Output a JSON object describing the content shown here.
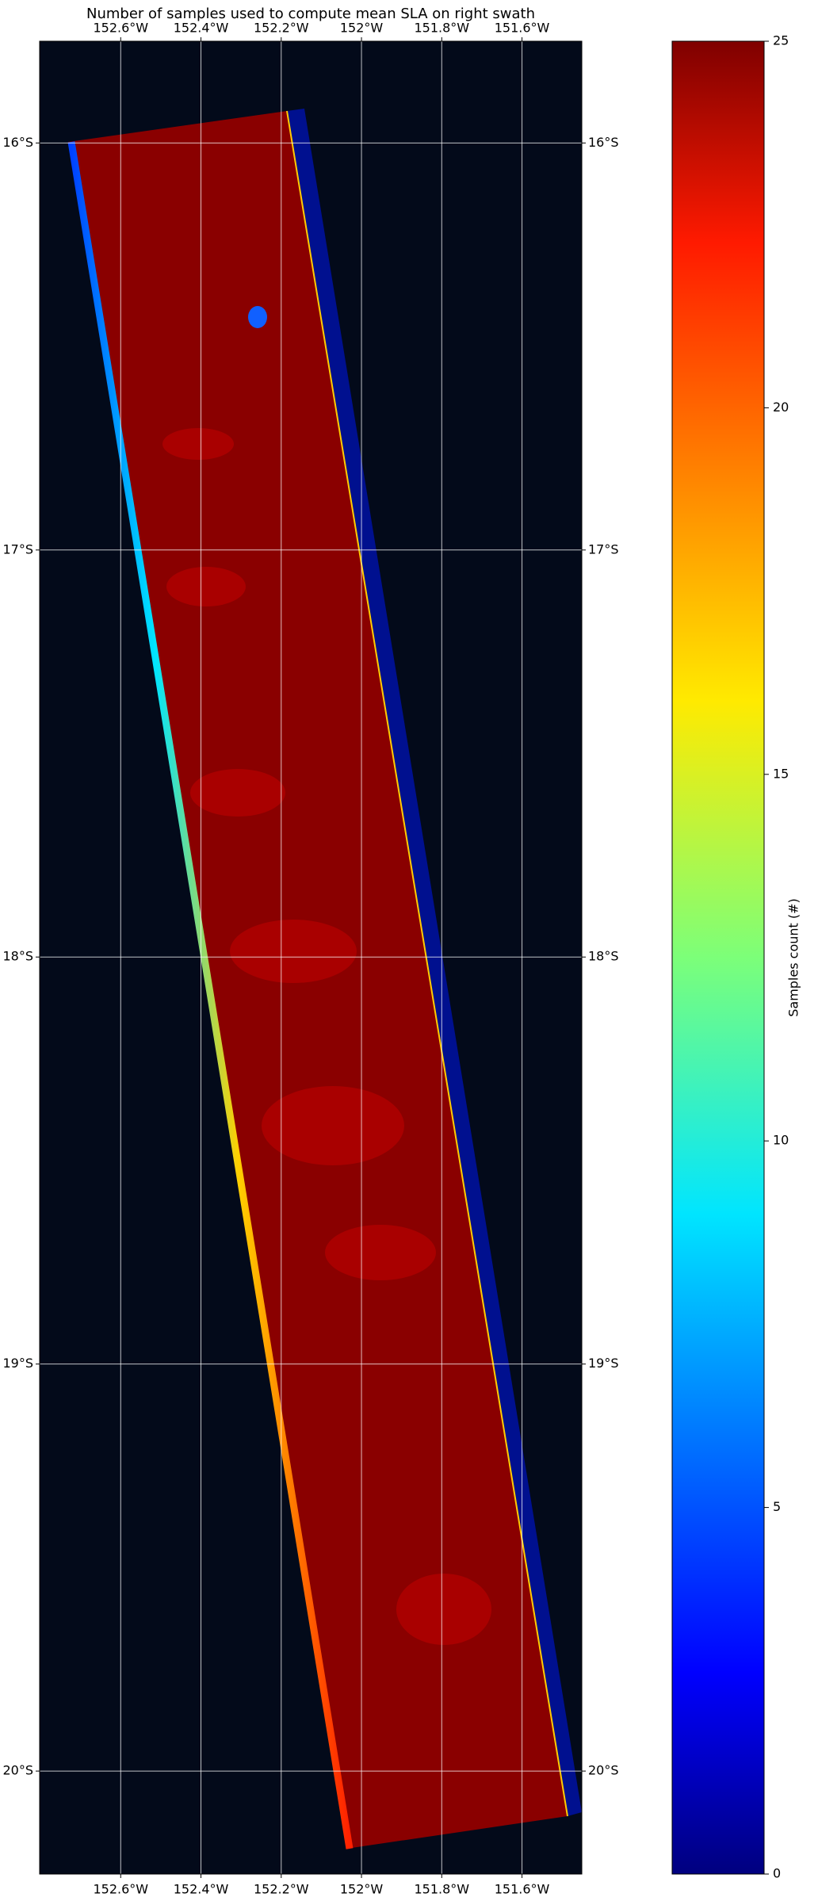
{
  "chart_data": {
    "type": "map",
    "title": "Number of samples used to compute mean SLA on right swath",
    "lon_lim": [
      -152.802,
      -151.451
    ],
    "lat_lim": [
      -20.253,
      -15.75
    ],
    "lon_ticks": [
      {
        "value": -152.6,
        "label": "152.6°W"
      },
      {
        "value": -152.4,
        "label": "152.4°W"
      },
      {
        "value": -152.2,
        "label": "152.2°W"
      },
      {
        "value": -152.0,
        "label": "152°W"
      },
      {
        "value": -151.8,
        "label": "151.8°W"
      },
      {
        "value": -151.6,
        "label": "151.6°W"
      }
    ],
    "lat_ticks": [
      {
        "value": -16,
        "label": "16°S"
      },
      {
        "value": -17,
        "label": "17°S"
      },
      {
        "value": -18,
        "label": "18°S"
      },
      {
        "value": -19,
        "label": "19°S"
      },
      {
        "value": -20,
        "label": "20°S"
      }
    ],
    "grid": true,
    "colorbar": {
      "label": "Samples count (#)",
      "clim": [
        0,
        25
      ],
      "ticks": [
        0,
        5,
        10,
        15,
        20,
        25
      ],
      "colormap": "jet"
    }
  }
}
